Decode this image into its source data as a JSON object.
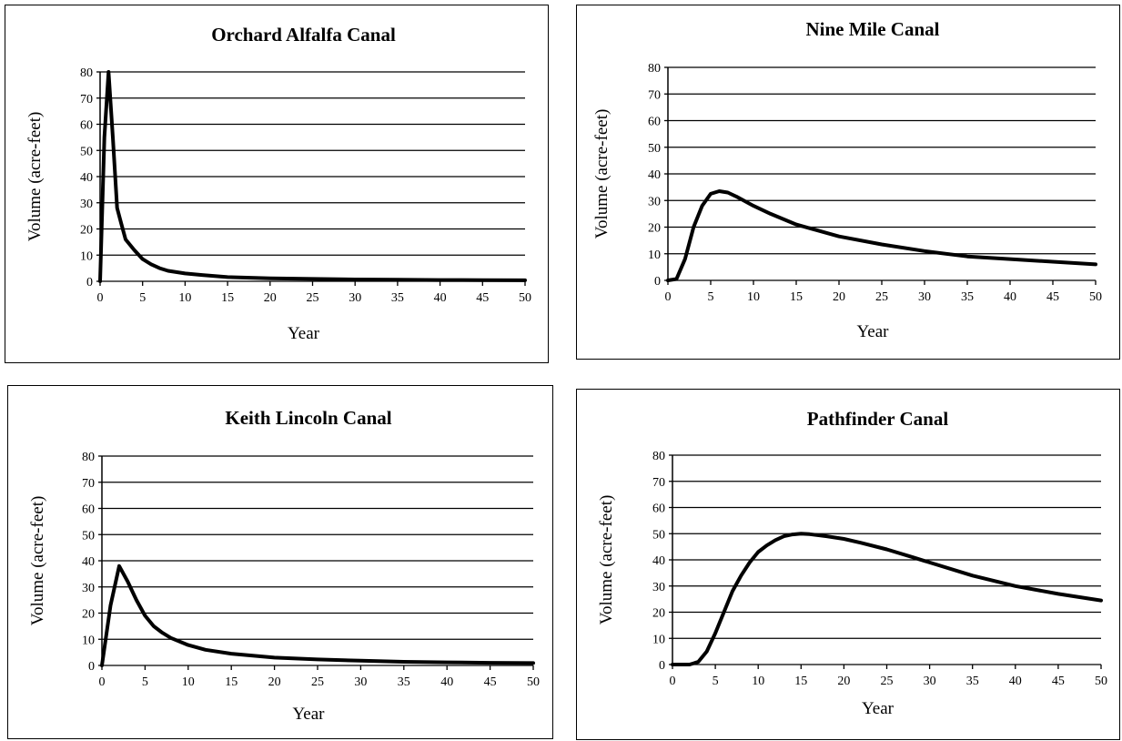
{
  "chart_data": [
    {
      "type": "line",
      "title": "Orchard Alfalfa Canal",
      "xlabel": "Year",
      "ylabel": "Volume (acre-feet)",
      "xlim": [
        0,
        50
      ],
      "ylim": [
        0,
        80
      ],
      "x_ticks": [
        "0",
        "5",
        "10",
        "15",
        "20",
        "25",
        "30",
        "35",
        "40",
        "45",
        "50"
      ],
      "y_ticks": [
        "0",
        "10",
        "20",
        "30",
        "40",
        "50",
        "60",
        "70",
        "80"
      ],
      "grid": "horizontal",
      "series": [
        {
          "x": [
            0,
            0.5,
            1,
            1.5,
            2,
            2.5,
            3,
            4,
            5,
            6,
            7,
            8,
            10,
            12,
            15,
            20,
            25,
            30,
            35,
            40,
            45,
            50
          ],
          "y": [
            0,
            55,
            80,
            55,
            28,
            22,
            16,
            12,
            8.5,
            6.5,
            5,
            4,
            3,
            2.4,
            1.6,
            1.1,
            0.9,
            0.7,
            0.6,
            0.5,
            0.45,
            0.4
          ]
        }
      ]
    },
    {
      "type": "line",
      "title": "Nine Mile Canal",
      "xlabel": "Year",
      "ylabel": "Volume (acre-feet)",
      "xlim": [
        0,
        50
      ],
      "ylim": [
        0,
        80
      ],
      "x_ticks": [
        "0",
        "5",
        "10",
        "15",
        "20",
        "25",
        "30",
        "35",
        "40",
        "45",
        "50"
      ],
      "y_ticks": [
        "0",
        "10",
        "20",
        "30",
        "40",
        "50",
        "60",
        "70",
        "80"
      ],
      "grid": "horizontal",
      "series": [
        {
          "x": [
            0,
            1,
            2,
            3,
            4,
            5,
            6,
            7,
            8,
            10,
            12,
            15,
            20,
            25,
            30,
            35,
            40,
            45,
            50
          ],
          "y": [
            0,
            0.5,
            8,
            20,
            28,
            32.5,
            33.5,
            33,
            31.5,
            28,
            25,
            21,
            16.5,
            13.5,
            11,
            9,
            8,
            7,
            6
          ]
        }
      ]
    },
    {
      "type": "line",
      "title": "Keith Lincoln Canal",
      "xlabel": "Year",
      "ylabel": "Volume (acre-feet)",
      "xlim": [
        0,
        50
      ],
      "ylim": [
        0,
        80
      ],
      "x_ticks": [
        "0",
        "5",
        "10",
        "15",
        "20",
        "25",
        "30",
        "35",
        "40",
        "45",
        "50"
      ],
      "y_ticks": [
        "0",
        "10",
        "20",
        "30",
        "40",
        "50",
        "60",
        "70",
        "80"
      ],
      "grid": "horizontal",
      "series": [
        {
          "x": [
            0,
            1,
            2,
            3,
            4,
            5,
            6,
            7,
            8,
            10,
            12,
            15,
            20,
            25,
            30,
            35,
            40,
            45,
            50
          ],
          "y": [
            0,
            23,
            38,
            32,
            25,
            19,
            15,
            12.5,
            10.5,
            7.8,
            6,
            4.5,
            3,
            2.3,
            1.8,
            1.4,
            1.2,
            1,
            0.9
          ]
        }
      ]
    },
    {
      "type": "line",
      "title": "Pathfinder Canal",
      "xlabel": "Year",
      "ylabel": "Volume (acre-feet)",
      "xlim": [
        0,
        50
      ],
      "ylim": [
        0,
        80
      ],
      "x_ticks": [
        "0",
        "5",
        "10",
        "15",
        "20",
        "25",
        "30",
        "35",
        "40",
        "45",
        "50"
      ],
      "y_ticks": [
        "0",
        "10",
        "20",
        "30",
        "40",
        "50",
        "60",
        "70",
        "80"
      ],
      "grid": "horizontal",
      "series": [
        {
          "x": [
            0,
            1,
            2,
            3,
            4,
            5,
            6,
            7,
            8,
            9,
            10,
            11,
            12,
            13,
            14,
            15,
            16,
            18,
            20,
            22,
            25,
            28,
            30,
            35,
            40,
            45,
            50
          ],
          "y": [
            0,
            0,
            0,
            1,
            5,
            12,
            20,
            28,
            34,
            39,
            43,
            45.5,
            47.5,
            49,
            49.7,
            50,
            49.8,
            49,
            48,
            46.5,
            44,
            41,
            39,
            34,
            30,
            27,
            24.5
          ]
        }
      ]
    }
  ]
}
